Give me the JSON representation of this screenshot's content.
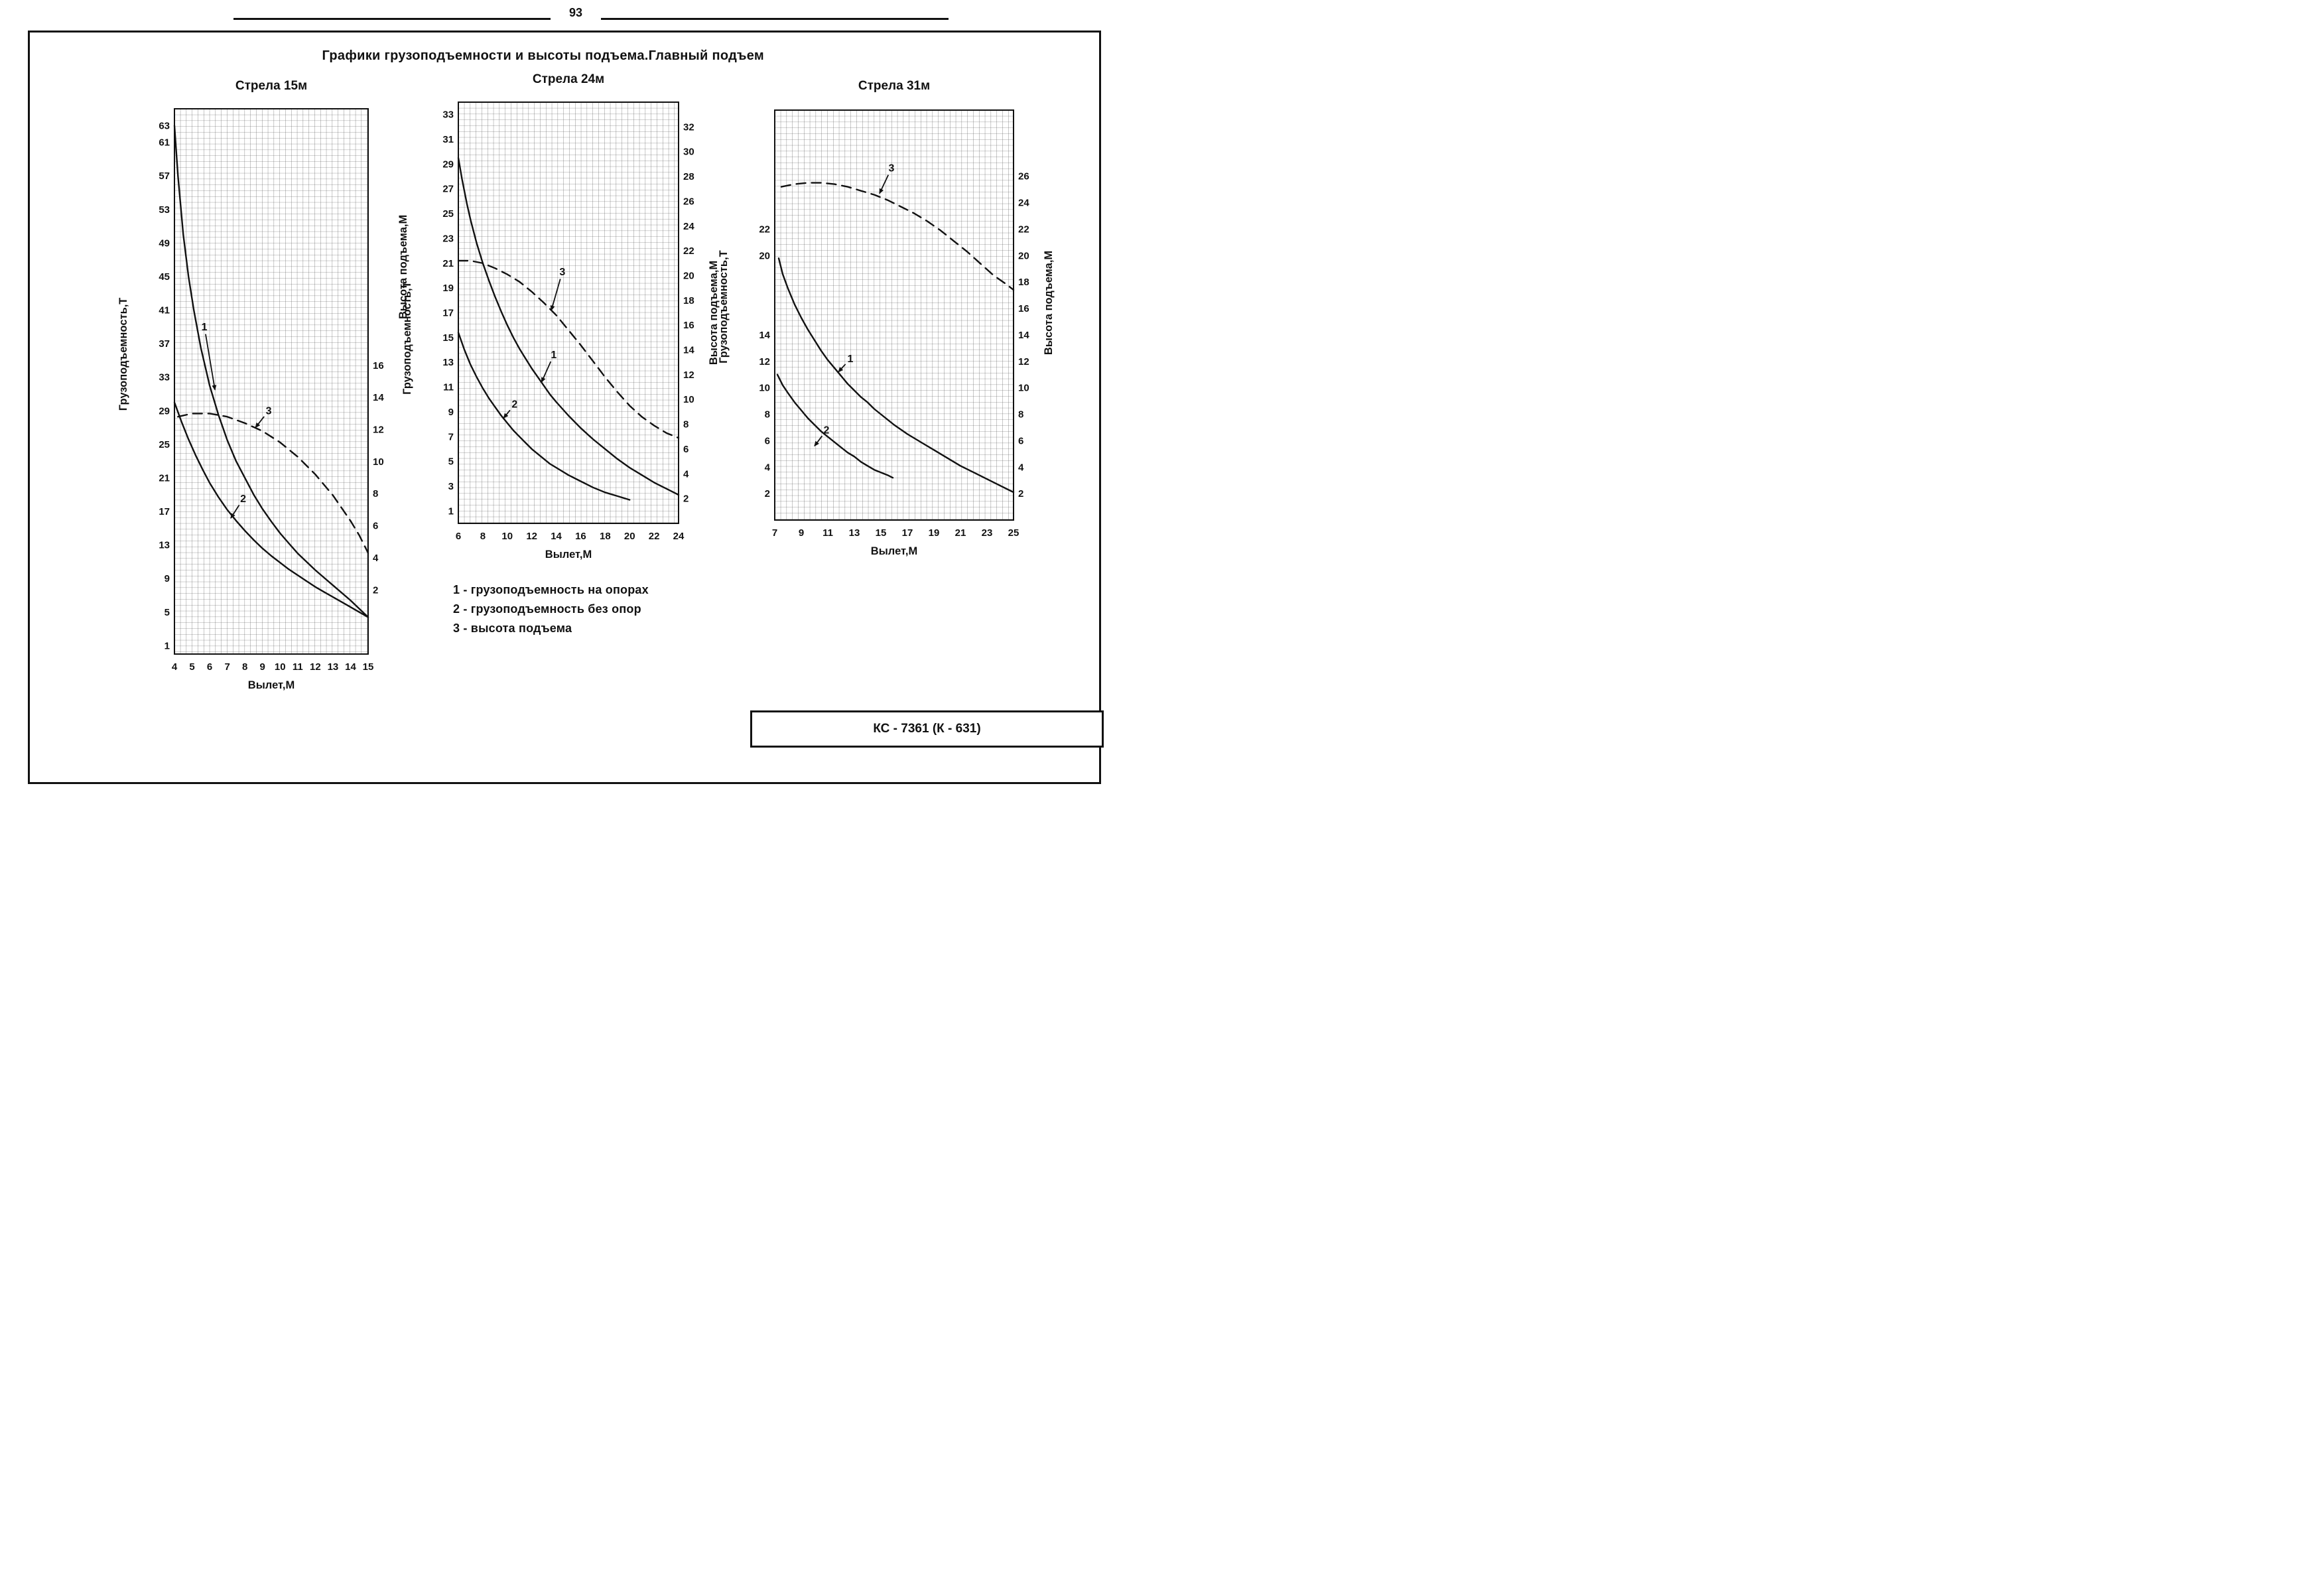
{
  "page": {
    "number": "93",
    "title": "Графики грузоподъемности и высоты подъема.Главный подъем",
    "stamp": "КС - 7361 (К - 631)"
  },
  "legend": {
    "items": [
      "1 - грузоподъемность на опорах",
      "2 - грузоподъемность без опор",
      "3 - высота подъема"
    ]
  },
  "colors": {
    "ink": "#111111",
    "grid": "#4a4a4a",
    "paper": "#ffffff"
  },
  "chart_data": [
    {
      "type": "line",
      "title": "Стрела 15м",
      "xlabel": "Вылет,М",
      "ylabel_left": "Грузоподъемность,Т",
      "ylabel_right": "Высота подъема,М",
      "xlim": [
        4,
        15
      ],
      "x_ticks": [
        4,
        5,
        6,
        7,
        8,
        9,
        10,
        11,
        12,
        13,
        14,
        15
      ],
      "left_axis": {
        "lim": [
          0,
          65
        ],
        "ticks": [
          63,
          61,
          57,
          53,
          49,
          45,
          41,
          37,
          33,
          29,
          25,
          21,
          17,
          13,
          9,
          5,
          1
        ]
      },
      "right_axis": {
        "lim": [
          -2,
          32
        ],
        "ticks": [
          16,
          14,
          12,
          10,
          8,
          6,
          4,
          2
        ]
      },
      "grid": true,
      "series": [
        {
          "id": "1",
          "name": "грузоподъемность на опорах",
          "axis": "left",
          "style": "solid",
          "points": [
            [
              4,
              63
            ],
            [
              4.2,
              57
            ],
            [
              4.5,
              50
            ],
            [
              4.8,
              45
            ],
            [
              5.1,
              41
            ],
            [
              5.5,
              36.5
            ],
            [
              6,
              32
            ],
            [
              6.5,
              28.5
            ],
            [
              7,
              25.5
            ],
            [
              7.5,
              23
            ],
            [
              8,
              21
            ],
            [
              8.5,
              19
            ],
            [
              9,
              17.3
            ],
            [
              9.5,
              15.8
            ],
            [
              10,
              14.4
            ],
            [
              10.5,
              13.2
            ],
            [
              11,
              12
            ],
            [
              11.5,
              11
            ],
            [
              12,
              10
            ],
            [
              12.5,
              9.1
            ],
            [
              13,
              8.2
            ],
            [
              13.5,
              7.3
            ],
            [
              14,
              6.4
            ],
            [
              14.5,
              5.4
            ],
            [
              15,
              4.4
            ]
          ]
        },
        {
          "id": "2",
          "name": "грузоподъемность без опор",
          "axis": "left",
          "style": "solid",
          "points": [
            [
              4,
              30
            ],
            [
              4.4,
              27.7
            ],
            [
              4.8,
              25.6
            ],
            [
              5.2,
              23.7
            ],
            [
              5.6,
              22
            ],
            [
              6,
              20.4
            ],
            [
              6.5,
              18.7
            ],
            [
              7,
              17.2
            ],
            [
              7.5,
              15.9
            ],
            [
              8,
              14.7
            ],
            [
              8.5,
              13.6
            ],
            [
              9,
              12.6
            ],
            [
              9.5,
              11.7
            ],
            [
              10,
              10.9
            ],
            [
              10.5,
              10.1
            ],
            [
              11,
              9.4
            ],
            [
              11.5,
              8.7
            ],
            [
              12,
              8
            ],
            [
              12.5,
              7.4
            ],
            [
              13,
              6.8
            ],
            [
              13.5,
              6.2
            ],
            [
              14,
              5.6
            ],
            [
              14.5,
              5
            ],
            [
              15,
              4.4
            ]
          ]
        },
        {
          "id": "3",
          "name": "высота подъема",
          "axis": "right",
          "style": "dashed",
          "points": [
            [
              4.2,
              12.8
            ],
            [
              5,
              13
            ],
            [
              6,
              13
            ],
            [
              7,
              12.8
            ],
            [
              8,
              12.4
            ],
            [
              9,
              11.9
            ],
            [
              10,
              11.2
            ],
            [
              11,
              10.3
            ],
            [
              12,
              9.2
            ],
            [
              13,
              7.9
            ],
            [
              14,
              6.3
            ],
            [
              14.5,
              5.4
            ],
            [
              15,
              4.3
            ]
          ]
        }
      ],
      "callouts": [
        {
          "text": "1",
          "x": 5.7,
          "y": 39,
          "ax": 6.3,
          "ay": 31.5
        },
        {
          "text": "2",
          "x": 7.9,
          "y": 18.5,
          "ax": 7.2,
          "ay": 16.2
        },
        {
          "text": "3",
          "x": 9.35,
          "y": 29,
          "ax": 8.6,
          "ay": 27
        }
      ],
      "layout": {
        "svg": [
          78,
          50,
          495,
          945
        ],
        "plot": [
          140,
          65,
          292,
          822
        ],
        "left_title_frac": 0.45,
        "right_title_frac": 0.29
      }
    },
    {
      "type": "line",
      "title": "Стрела 24м",
      "xlabel": "Вылет,М",
      "ylabel_left": "Грузоподъемность,Т",
      "ylabel_right": "Высота подъема,М",
      "xlim": [
        6,
        24
      ],
      "x_ticks": [
        6,
        8,
        10,
        12,
        14,
        16,
        18,
        20,
        22,
        24
      ],
      "left_axis": {
        "lim": [
          0,
          34
        ],
        "ticks": [
          33,
          31,
          29,
          27,
          25,
          23,
          21,
          19,
          17,
          15,
          13,
          11,
          9,
          7,
          5,
          3,
          1
        ]
      },
      "right_axis": {
        "lim": [
          0,
          34
        ],
        "ticks": [
          32,
          30,
          28,
          26,
          24,
          22,
          20,
          18,
          16,
          14,
          12,
          10,
          8,
          6,
          4,
          2
        ]
      },
      "grid": true,
      "series": [
        {
          "id": "1",
          "name": "грузоподъемность на опорах",
          "axis": "left",
          "style": "solid",
          "points": [
            [
              6,
              29.5
            ],
            [
              6.3,
              27.8
            ],
            [
              6.7,
              25.8
            ],
            [
              7,
              24.5
            ],
            [
              7.5,
              22.6
            ],
            [
              8,
              21
            ],
            [
              8.5,
              19.6
            ],
            [
              9,
              18.3
            ],
            [
              9.5,
              17.1
            ],
            [
              10,
              16
            ],
            [
              10.5,
              15
            ],
            [
              11,
              14.1
            ],
            [
              11.5,
              13.3
            ],
            [
              12,
              12.5
            ],
            [
              12.5,
              11.8
            ],
            [
              13,
              11.1
            ],
            [
              13.5,
              10.4
            ],
            [
              14,
              9.8
            ],
            [
              15,
              8.7
            ],
            [
              16,
              7.7
            ],
            [
              17,
              6.8
            ],
            [
              18,
              6
            ],
            [
              19,
              5.2
            ],
            [
              20,
              4.5
            ],
            [
              21,
              3.9
            ],
            [
              22,
              3.3
            ],
            [
              23,
              2.8
            ],
            [
              24,
              2.3
            ]
          ]
        },
        {
          "id": "2",
          "name": "грузоподъемность без опор",
          "axis": "left",
          "style": "solid",
          "points": [
            [
              6,
              15.4
            ],
            [
              6.5,
              14
            ],
            [
              7,
              12.8
            ],
            [
              7.5,
              11.8
            ],
            [
              8,
              10.9
            ],
            [
              8.5,
              10.1
            ],
            [
              9,
              9.4
            ],
            [
              9.5,
              8.7
            ],
            [
              10,
              8.1
            ],
            [
              10.5,
              7.5
            ],
            [
              11,
              7
            ],
            [
              11.5,
              6.5
            ],
            [
              12,
              6
            ],
            [
              12.5,
              5.6
            ],
            [
              13,
              5.2
            ],
            [
              13.5,
              4.8
            ],
            [
              14,
              4.5
            ],
            [
              15,
              3.9
            ],
            [
              16,
              3.4
            ],
            [
              17,
              2.9
            ],
            [
              18,
              2.5
            ],
            [
              19,
              2.2
            ],
            [
              20,
              1.9
            ]
          ]
        },
        {
          "id": "3",
          "name": "высота подъема",
          "axis": "right",
          "style": "dashed",
          "points": [
            [
              6,
              21.2
            ],
            [
              7,
              21.2
            ],
            [
              8,
              21
            ],
            [
              9,
              20.6
            ],
            [
              10,
              20.1
            ],
            [
              11,
              19.5
            ],
            [
              12,
              18.7
            ],
            [
              13,
              17.8
            ],
            [
              14,
              16.8
            ],
            [
              15,
              15.6
            ],
            [
              16,
              14.4
            ],
            [
              17,
              13.1
            ],
            [
              18,
              11.8
            ],
            [
              19,
              10.6
            ],
            [
              20,
              9.5
            ],
            [
              21,
              8.6
            ],
            [
              22,
              7.9
            ],
            [
              23,
              7.3
            ],
            [
              24,
              6.9
            ]
          ]
        }
      ],
      "callouts": [
        {
          "text": "1",
          "x": 13.8,
          "y": 13.6,
          "ax": 12.8,
          "ay": 11.4
        },
        {
          "text": "2",
          "x": 10.6,
          "y": 9.6,
          "ax": 9.7,
          "ay": 8.5
        },
        {
          "text": "3",
          "x": 14.5,
          "y": 20.3,
          "ax": 13.6,
          "ay": 17.2
        }
      ],
      "layout": {
        "svg": [
          553,
          40,
          510,
          790
        ],
        "plot": [
          93,
          65,
          332,
          635
        ],
        "left_title_frac": 0.56,
        "right_title_frac": 0.5
      }
    },
    {
      "type": "line",
      "title": "Стрела 31м",
      "xlabel": "Вылет,М",
      "ylabel_left": "Грузоподъемность,Т",
      "ylabel_right": "Высота подъема,М",
      "xlim": [
        7,
        25
      ],
      "x_ticks": [
        7,
        9,
        11,
        13,
        15,
        17,
        19,
        21,
        23,
        25
      ],
      "left_axis": {
        "lim": [
          0,
          31
        ],
        "ticks": [
          22,
          20,
          14,
          12,
          10,
          8,
          6,
          4,
          2
        ]
      },
      "right_axis": {
        "lim": [
          0,
          31
        ],
        "ticks": [
          26,
          24,
          22,
          20,
          18,
          16,
          14,
          12,
          10,
          8,
          6,
          4,
          2
        ]
      },
      "grid": true,
      "series": [
        {
          "id": "1",
          "name": "грузоподъемность на опорах",
          "axis": "left",
          "style": "solid",
          "points": [
            [
              7.3,
              19.8
            ],
            [
              7.6,
              18.6
            ],
            [
              8,
              17.5
            ],
            [
              8.5,
              16.3
            ],
            [
              9,
              15.3
            ],
            [
              9.5,
              14.4
            ],
            [
              10,
              13.6
            ],
            [
              10.5,
              12.8
            ],
            [
              11,
              12.1
            ],
            [
              11.5,
              11.5
            ],
            [
              12,
              10.9
            ],
            [
              12.5,
              10.3
            ],
            [
              13,
              9.8
            ],
            [
              13.5,
              9.3
            ],
            [
              14,
              8.9
            ],
            [
              14.5,
              8.4
            ],
            [
              15,
              8
            ],
            [
              16,
              7.2
            ],
            [
              17,
              6.5
            ],
            [
              18,
              5.9
            ],
            [
              19,
              5.3
            ],
            [
              20,
              4.7
            ],
            [
              21,
              4.1
            ],
            [
              22,
              3.6
            ],
            [
              23,
              3.1
            ],
            [
              24,
              2.6
            ],
            [
              25,
              2.1
            ]
          ]
        },
        {
          "id": "2",
          "name": "грузоподъемность без опор",
          "axis": "left",
          "style": "solid",
          "points": [
            [
              7.2,
              11
            ],
            [
              7.6,
              10.2
            ],
            [
              8,
              9.6
            ],
            [
              8.5,
              8.9
            ],
            [
              9,
              8.3
            ],
            [
              9.5,
              7.7
            ],
            [
              10,
              7.2
            ],
            [
              10.5,
              6.7
            ],
            [
              11,
              6.3
            ],
            [
              11.5,
              5.9
            ],
            [
              12,
              5.5
            ],
            [
              12.5,
              5.1
            ],
            [
              13,
              4.8
            ],
            [
              13.5,
              4.4
            ],
            [
              14,
              4.1
            ],
            [
              14.5,
              3.8
            ],
            [
              15,
              3.6
            ],
            [
              15.5,
              3.4
            ],
            [
              15.9,
              3.2
            ]
          ]
        },
        {
          "id": "3",
          "name": "высота подъема",
          "axis": "right",
          "style": "dashed",
          "points": [
            [
              7.5,
              25.2
            ],
            [
              8.5,
              25.4
            ],
            [
              9.5,
              25.5
            ],
            [
              10.5,
              25.5
            ],
            [
              11.5,
              25.4
            ],
            [
              12.5,
              25.2
            ],
            [
              13.5,
              24.9
            ],
            [
              14.5,
              24.6
            ],
            [
              15.5,
              24.2
            ],
            [
              16.5,
              23.7
            ],
            [
              17.5,
              23.2
            ],
            [
              18.5,
              22.6
            ],
            [
              19.5,
              21.9
            ],
            [
              20.5,
              21.1
            ],
            [
              21.5,
              20.3
            ],
            [
              22.5,
              19.4
            ],
            [
              23.5,
              18.5
            ],
            [
              24.5,
              17.8
            ],
            [
              25,
              17.4
            ]
          ]
        }
      ],
      "callouts": [
        {
          "text": "1",
          "x": 12.7,
          "y": 12.2,
          "ax": 11.8,
          "ay": 11.2
        },
        {
          "text": "2",
          "x": 10.9,
          "y": 6.8,
          "ax": 10,
          "ay": 5.6
        },
        {
          "text": "3",
          "x": 15.8,
          "y": 26.6,
          "ax": 14.9,
          "ay": 24.7
        }
      ],
      "layout": {
        "svg": [
          1033,
          50,
          565,
          745
        ],
        "plot": [
          90,
          67,
          360,
          618
        ],
        "left_title_frac": 0.48,
        "right_title_frac": 0.47
      }
    }
  ]
}
